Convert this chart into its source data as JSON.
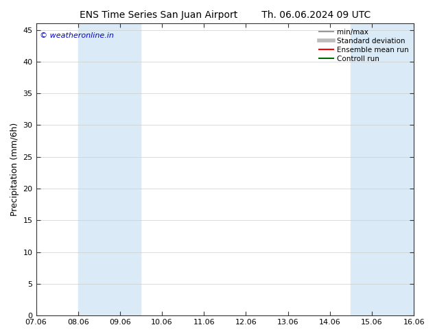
{
  "title_left": "ENS Time Series San Juan Airport",
  "title_right": "Th. 06.06.2024 09 UTC",
  "ylabel": "Precipitation (mm/6h)",
  "yticks": [
    0,
    5,
    10,
    15,
    20,
    25,
    30,
    35,
    40,
    45
  ],
  "ylim": [
    0,
    46
  ],
  "xlim": [
    0,
    9
  ],
  "xtick_labels": [
    "07.06",
    "08.06",
    "09.06",
    "10.06",
    "11.06",
    "12.06",
    "13.06",
    "14.06",
    "15.06",
    "16.06"
  ],
  "xtick_positions": [
    0,
    1,
    2,
    3,
    4,
    5,
    6,
    7,
    8,
    9
  ],
  "shaded_bands": [
    [
      1.0,
      1.5
    ],
    [
      1.5,
      2.5
    ],
    [
      7.5,
      8.0
    ],
    [
      8.0,
      9.0
    ],
    [
      8.9,
      9.1
    ]
  ],
  "shade_color": "#daeaf6",
  "background_color": "#ffffff",
  "plot_bg_color": "#ffffff",
  "watermark": "© weatheronline.in",
  "watermark_color": "#0000cc",
  "legend_items": [
    {
      "label": "min/max",
      "color": "#999999",
      "lw": 1.5
    },
    {
      "label": "Standard deviation",
      "color": "#bbbbbb",
      "lw": 4
    },
    {
      "label": "Ensemble mean run",
      "color": "#ff0000",
      "lw": 1.5
    },
    {
      "label": "Controll run",
      "color": "#006600",
      "lw": 1.5
    }
  ],
  "title_fontsize": 10,
  "ylabel_fontsize": 9,
  "tick_fontsize": 8,
  "legend_fontsize": 7.5
}
